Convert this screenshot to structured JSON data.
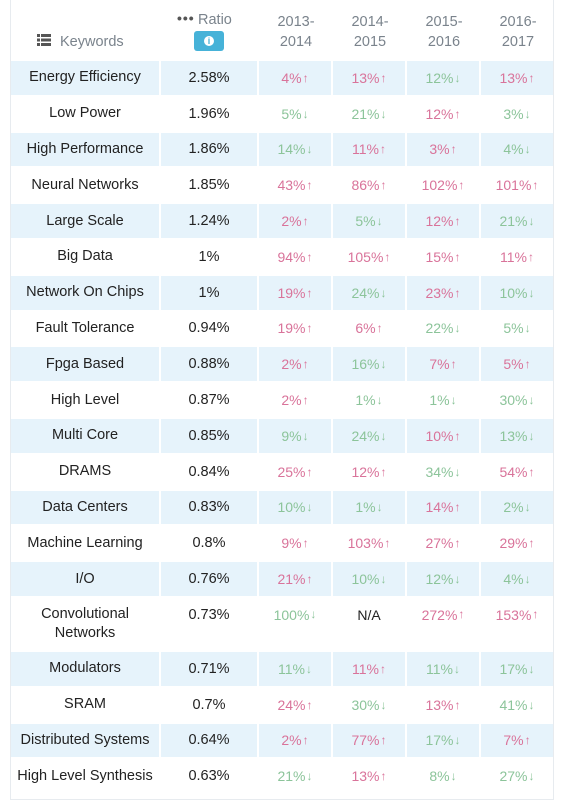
{
  "header": {
    "keywords_label": "Keywords",
    "ratio_label": "Ratio",
    "ratio_dots": "•••",
    "info_glyph": "i",
    "years": [
      "2013-\n2014",
      "2014-\n2015",
      "2015-\n2016",
      "2016-\n2017"
    ]
  },
  "colors": {
    "up": "#d9739a",
    "down": "#8cc49a",
    "shade": "#e6f3fb",
    "info": "#46b2d8"
  },
  "rows": [
    {
      "keyword": "Energy Efficiency",
      "ratio": "2.58%",
      "changes": [
        {
          "v": "4%",
          "d": "up"
        },
        {
          "v": "13%",
          "d": "up"
        },
        {
          "v": "12%",
          "d": "down"
        },
        {
          "v": "13%",
          "d": "up"
        }
      ]
    },
    {
      "keyword": "Low Power",
      "ratio": "1.96%",
      "changes": [
        {
          "v": "5%",
          "d": "down"
        },
        {
          "v": "21%",
          "d": "down"
        },
        {
          "v": "12%",
          "d": "up"
        },
        {
          "v": "3%",
          "d": "down"
        }
      ]
    },
    {
      "keyword": "High Performance",
      "ratio": "1.86%",
      "changes": [
        {
          "v": "14%",
          "d": "down"
        },
        {
          "v": "11%",
          "d": "up"
        },
        {
          "v": "3%",
          "d": "up"
        },
        {
          "v": "4%",
          "d": "down"
        }
      ]
    },
    {
      "keyword": "Neural Networks",
      "ratio": "1.85%",
      "changes": [
        {
          "v": "43%",
          "d": "up"
        },
        {
          "v": "86%",
          "d": "up"
        },
        {
          "v": "102%",
          "d": "up"
        },
        {
          "v": "101%",
          "d": "up"
        }
      ]
    },
    {
      "keyword": "Large Scale",
      "ratio": "1.24%",
      "changes": [
        {
          "v": "2%",
          "d": "up"
        },
        {
          "v": "5%",
          "d": "down"
        },
        {
          "v": "12%",
          "d": "up"
        },
        {
          "v": "21%",
          "d": "down"
        }
      ]
    },
    {
      "keyword": "Big Data",
      "ratio": "1%",
      "changes": [
        {
          "v": "94%",
          "d": "up"
        },
        {
          "v": "105%",
          "d": "up"
        },
        {
          "v": "15%",
          "d": "up"
        },
        {
          "v": "11%",
          "d": "up"
        }
      ]
    },
    {
      "keyword": "Network On Chips",
      "ratio": "1%",
      "changes": [
        {
          "v": "19%",
          "d": "up"
        },
        {
          "v": "24%",
          "d": "down"
        },
        {
          "v": "23%",
          "d": "up"
        },
        {
          "v": "10%",
          "d": "down"
        }
      ]
    },
    {
      "keyword": "Fault Tolerance",
      "ratio": "0.94%",
      "changes": [
        {
          "v": "19%",
          "d": "up"
        },
        {
          "v": "6%",
          "d": "up"
        },
        {
          "v": "22%",
          "d": "down"
        },
        {
          "v": "5%",
          "d": "down"
        }
      ]
    },
    {
      "keyword": "Fpga Based",
      "ratio": "0.88%",
      "changes": [
        {
          "v": "2%",
          "d": "up"
        },
        {
          "v": "16%",
          "d": "down"
        },
        {
          "v": "7%",
          "d": "up"
        },
        {
          "v": "5%",
          "d": "up"
        }
      ]
    },
    {
      "keyword": "High Level",
      "ratio": "0.87%",
      "changes": [
        {
          "v": "2%",
          "d": "up"
        },
        {
          "v": "1%",
          "d": "down"
        },
        {
          "v": "1%",
          "d": "down"
        },
        {
          "v": "30%",
          "d": "down"
        }
      ]
    },
    {
      "keyword": "Multi Core",
      "ratio": "0.85%",
      "changes": [
        {
          "v": "9%",
          "d": "down"
        },
        {
          "v": "24%",
          "d": "down"
        },
        {
          "v": "10%",
          "d": "up"
        },
        {
          "v": "13%",
          "d": "down"
        }
      ]
    },
    {
      "keyword": "DRAMS",
      "ratio": "0.84%",
      "changes": [
        {
          "v": "25%",
          "d": "up"
        },
        {
          "v": "12%",
          "d": "up"
        },
        {
          "v": "34%",
          "d": "down"
        },
        {
          "v": "54%",
          "d": "up"
        }
      ]
    },
    {
      "keyword": "Data Centers",
      "ratio": "0.83%",
      "changes": [
        {
          "v": "10%",
          "d": "down"
        },
        {
          "v": "1%",
          "d": "down"
        },
        {
          "v": "14%",
          "d": "up"
        },
        {
          "v": "2%",
          "d": "down"
        }
      ]
    },
    {
      "keyword": "Machine Learning",
      "ratio": "0.8%",
      "changes": [
        {
          "v": "9%",
          "d": "up"
        },
        {
          "v": "103%",
          "d": "up"
        },
        {
          "v": "27%",
          "d": "up"
        },
        {
          "v": "29%",
          "d": "up"
        }
      ]
    },
    {
      "keyword": "I/O",
      "ratio": "0.76%",
      "changes": [
        {
          "v": "21%",
          "d": "up"
        },
        {
          "v": "10%",
          "d": "down"
        },
        {
          "v": "12%",
          "d": "down"
        },
        {
          "v": "4%",
          "d": "down"
        }
      ]
    },
    {
      "keyword": "Convolutional Networks",
      "ratio": "0.73%",
      "tall": true,
      "changes": [
        {
          "v": "100%",
          "d": "down"
        },
        {
          "v": "N/A",
          "d": "na"
        },
        {
          "v": "272%",
          "d": "up"
        },
        {
          "v": "153%",
          "d": "up"
        }
      ]
    },
    {
      "keyword": "Modulators",
      "ratio": "0.71%",
      "changes": [
        {
          "v": "11%",
          "d": "down"
        },
        {
          "v": "11%",
          "d": "up"
        },
        {
          "v": "11%",
          "d": "down"
        },
        {
          "v": "17%",
          "d": "down"
        }
      ]
    },
    {
      "keyword": "SRAM",
      "ratio": "0.7%",
      "changes": [
        {
          "v": "24%",
          "d": "up"
        },
        {
          "v": "30%",
          "d": "down"
        },
        {
          "v": "13%",
          "d": "up"
        },
        {
          "v": "41%",
          "d": "down"
        }
      ]
    },
    {
      "keyword": "Distributed Systems",
      "ratio": "0.64%",
      "changes": [
        {
          "v": "2%",
          "d": "up"
        },
        {
          "v": "77%",
          "d": "up"
        },
        {
          "v": "17%",
          "d": "down"
        },
        {
          "v": "7%",
          "d": "up"
        }
      ]
    },
    {
      "keyword": "High Level Synthesis",
      "ratio": "0.63%",
      "changes": [
        {
          "v": "21%",
          "d": "down"
        },
        {
          "v": "13%",
          "d": "up"
        },
        {
          "v": "8%",
          "d": "down"
        },
        {
          "v": "27%",
          "d": "down"
        }
      ]
    }
  ]
}
